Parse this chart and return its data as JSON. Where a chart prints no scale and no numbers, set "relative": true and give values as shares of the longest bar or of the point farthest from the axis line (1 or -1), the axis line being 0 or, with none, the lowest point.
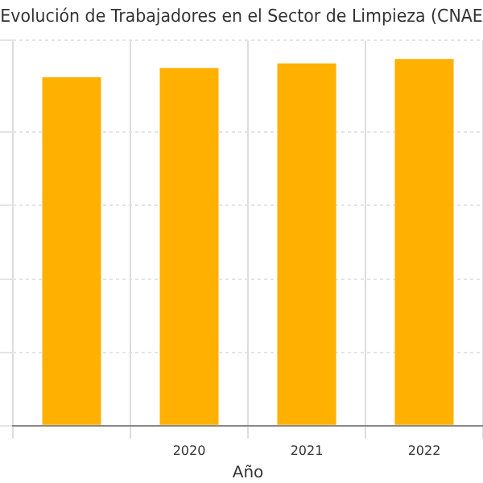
{
  "chart_data": {
    "type": "bar",
    "title": "Evolución de Trabajadores en el Sector de Limpieza (CNAE",
    "xlabel": "Año",
    "categories": [
      null,
      "2020",
      "2021",
      "2022"
    ],
    "values": [
      0.95,
      0.975,
      0.988,
      1
    ],
    "color": "#ffb000",
    "relative": true,
    "grid": true
  }
}
